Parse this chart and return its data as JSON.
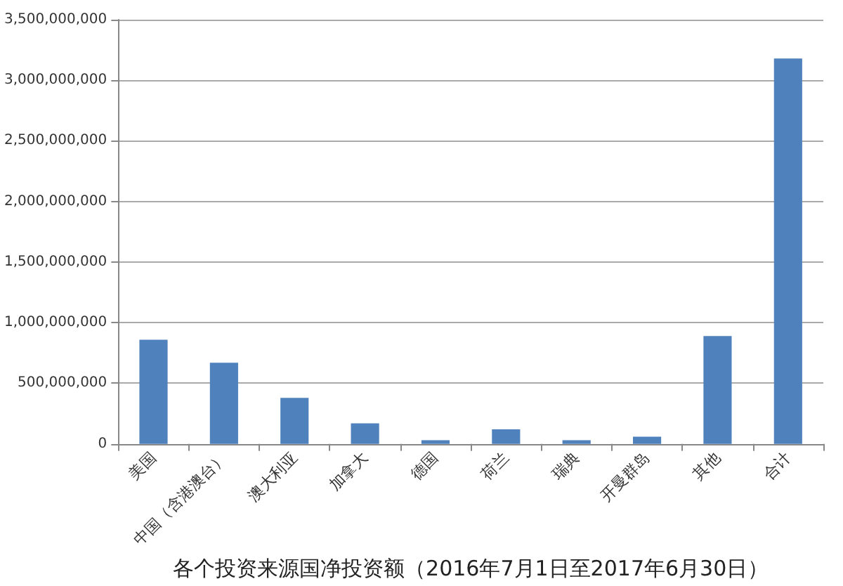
{
  "chart_data": {
    "type": "bar",
    "xlabel": "各个投资来源国净投资额（2016年7月1日至2017年6月30日）",
    "categories": [
      "美国",
      "中国（含港澳台）",
      "澳大利亚",
      "加拿大",
      "德国",
      "荷兰",
      "瑞典",
      "开曼群岛",
      "其他",
      "合计"
    ],
    "values": [
      860000000,
      670000000,
      380000000,
      170000000,
      30000000,
      120000000,
      30000000,
      60000000,
      890000000,
      3180000000
    ],
    "color": "#4f81bd",
    "ylim": [
      0,
      3500000000
    ],
    "yticks": [
      0,
      {
        "value": 500000000,
        "label": "500,000,000"
      },
      {
        "value": 1000000000,
        "label": "1,000,000,000"
      },
      {
        "value": 1500000000,
        "label": "1,500,000,000"
      },
      {
        "value": 2000000000,
        "label": "2,000,000,000"
      },
      {
        "value": 2500000000,
        "label": "2,500,000,000"
      },
      {
        "value": 3000000000,
        "label": "3,000,000,000"
      },
      {
        "value": 3500000000,
        "label": "3,500,000,000"
      }
    ],
    "grid": "y"
  }
}
